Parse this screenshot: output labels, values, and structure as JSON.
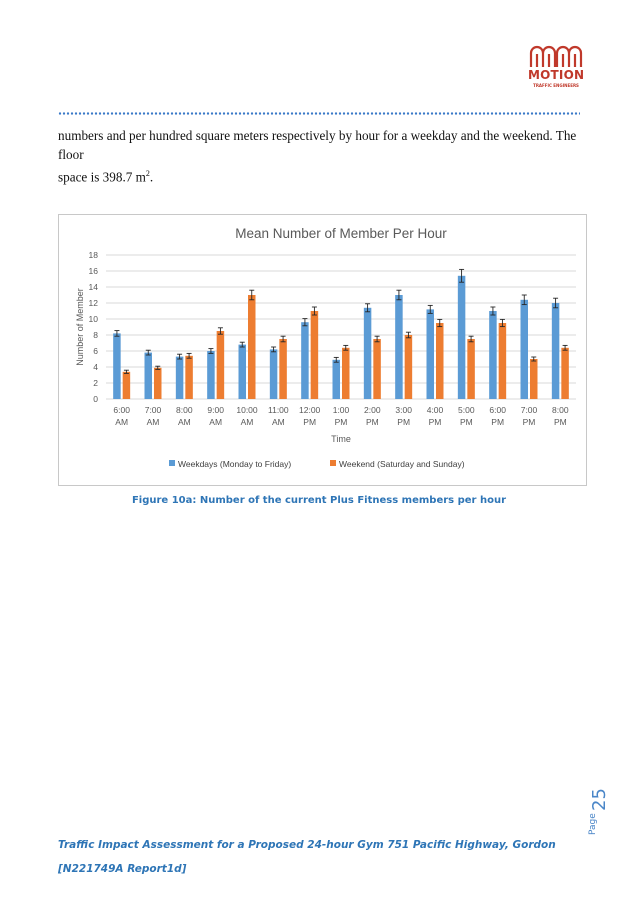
{
  "logo": {
    "word": "MOTION",
    "sub": "TRAFFIC ENGINEERS",
    "color": "#c0392b"
  },
  "body_text": {
    "line1": "numbers and per hundred square meters respectively by hour for a weekday and the weekend. The floor",
    "line2_prefix": "space is 398.7 m",
    "line2_sup": "2",
    "line2_suffix": "."
  },
  "caption": "Figure 10a: Number of the current Plus Fitness members per hour",
  "footer": {
    "line1": "Traffic Impact Assessment for a Proposed 24-hour Gym 751 Pacific Highway, Gordon",
    "line2": "[N221749A Report1d]"
  },
  "page": {
    "label": "Page",
    "number": "25"
  },
  "chart_data": {
    "type": "bar",
    "title": "Mean Number of Member Per Hour",
    "xlabel": "Time",
    "ylabel": "Number of Member",
    "ylim": [
      0,
      18
    ],
    "yticks": [
      "0",
      "2",
      "4",
      "6",
      "8",
      "10",
      "12",
      "14",
      "16",
      "18"
    ],
    "grid": true,
    "legend_position": "bottom",
    "categories": [
      [
        "6:00",
        "AM"
      ],
      [
        "7:00",
        "AM"
      ],
      [
        "8:00",
        "AM"
      ],
      [
        "9:00",
        "AM"
      ],
      [
        "10:00",
        "AM"
      ],
      [
        "11:00",
        "AM"
      ],
      [
        "12:00",
        "PM"
      ],
      [
        "1:00",
        "PM"
      ],
      [
        "2:00",
        "PM"
      ],
      [
        "3:00",
        "PM"
      ],
      [
        "4:00",
        "PM"
      ],
      [
        "5:00",
        "PM"
      ],
      [
        "6:00",
        "PM"
      ],
      [
        "7:00",
        "PM"
      ],
      [
        "8:00",
        "PM"
      ]
    ],
    "series": [
      {
        "name": "Weekdays (Monday to Friday)",
        "color": "#5b9bd5",
        "values": [
          8.2,
          5.8,
          5.3,
          6.0,
          6.8,
          6.2,
          9.6,
          4.9,
          11.4,
          13.0,
          11.2,
          15.4,
          11.0,
          12.4,
          12.0
        ],
        "errors": [
          0.35,
          0.3,
          0.3,
          0.3,
          0.3,
          0.3,
          0.45,
          0.3,
          0.5,
          0.6,
          0.5,
          0.8,
          0.5,
          0.6,
          0.6
        ]
      },
      {
        "name": "Weekend (Saturday and Sunday)",
        "color": "#ed7d31",
        "values": [
          3.4,
          3.9,
          5.4,
          8.5,
          13.0,
          7.5,
          11.0,
          6.4,
          7.5,
          8.0,
          9.5,
          7.5,
          9.5,
          5.0,
          6.4
        ],
        "errors": [
          0.2,
          0.2,
          0.3,
          0.4,
          0.6,
          0.35,
          0.5,
          0.3,
          0.35,
          0.35,
          0.45,
          0.35,
          0.45,
          0.25,
          0.3
        ]
      }
    ]
  }
}
